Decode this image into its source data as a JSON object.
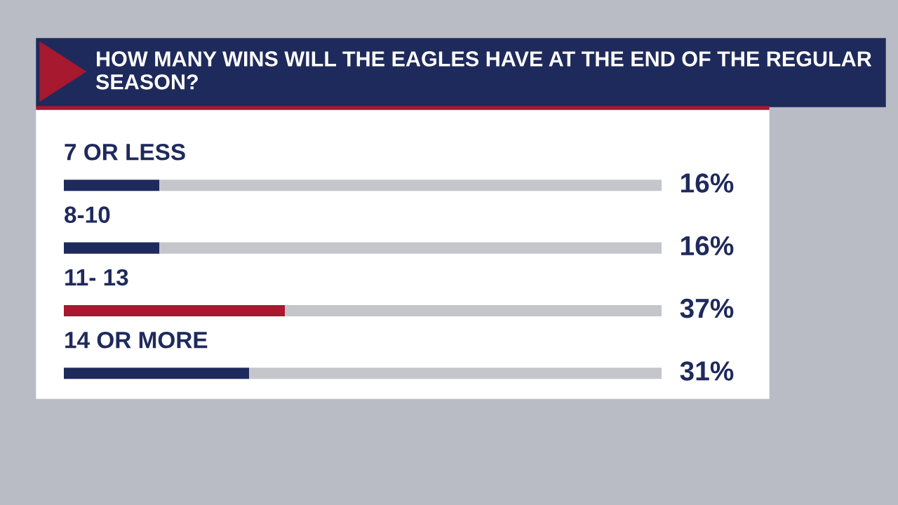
{
  "chart_data": {
    "type": "bar",
    "orientation": "horizontal",
    "stacked": true,
    "title": "HOW MANY WINS WILL THE EAGLES HAVE AT THE END OF THE REGULAR SEASON?",
    "categories": [
      "7 OR LESS",
      "8-10",
      "11- 13",
      "14 OR MORE"
    ],
    "series": [
      {
        "colors": [
          "#1f2a5c",
          "#1f2a5c",
          "#a6192e",
          "#1f2a5c"
        ],
        "values": [
          16,
          16,
          37,
          31
        ],
        "value_labels": [
          "16%",
          "16%",
          "37%",
          "31%"
        ]
      },
      {
        "color": "#c4c6cc",
        "values": [
          84,
          84,
          63,
          69
        ]
      }
    ],
    "xlim": [
      0,
      100
    ],
    "legend": false
  }
}
